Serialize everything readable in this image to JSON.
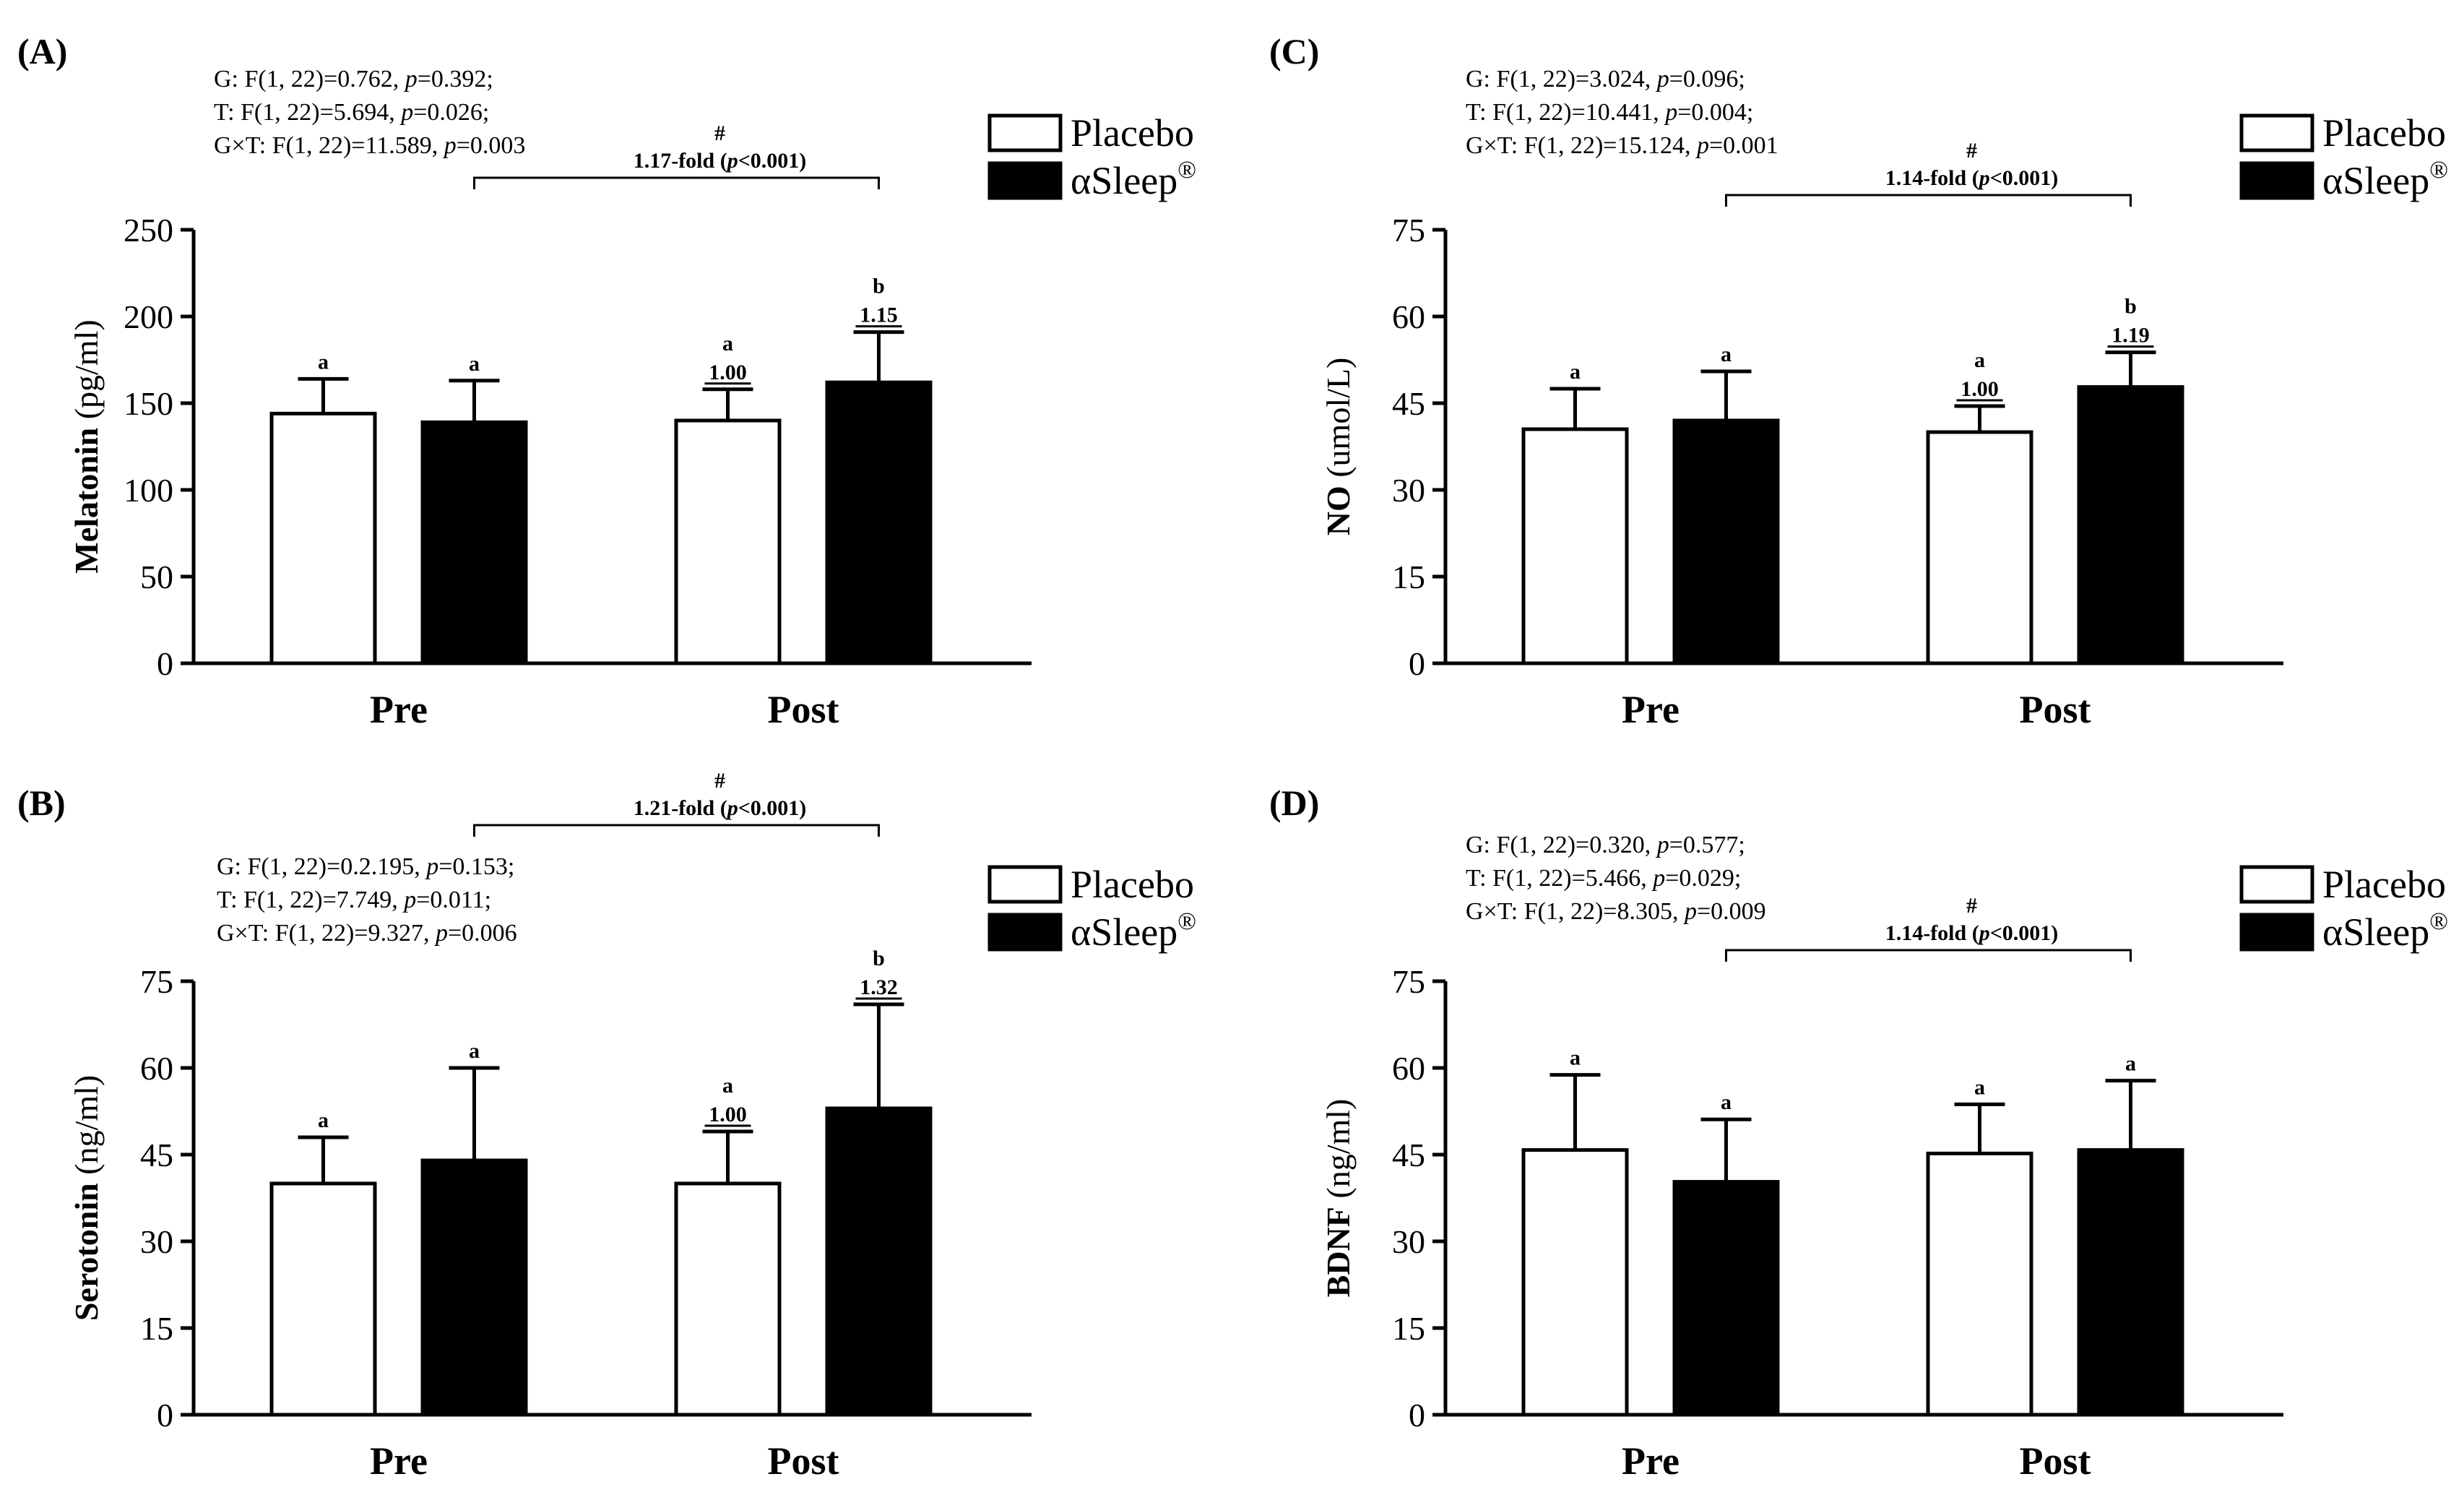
{
  "colors": {
    "placebo": "#ffffff",
    "asleep": "#000000",
    "stroke": "#000000"
  },
  "chart_data": [
    {
      "type": "bar",
      "panel_label": "(A)",
      "ylabel": "Melatonin (pg/ml)",
      "categories": [
        "Pre",
        "Post"
      ],
      "ylim": [
        0,
        250
      ],
      "yticks": [
        "0",
        "50",
        "100",
        "150",
        "200",
        "250"
      ],
      "legend": [
        "Placebo",
        "αSleep®"
      ],
      "legend_placement": "top-right",
      "stats": [
        {
          "prefix": "G: F(1, 22)=0.762,",
          "p": "=0.392;"
        },
        {
          "prefix": "T: F(1, 22)=5.694,",
          "p": "=0.026;"
        },
        {
          "prefix": "G×T: F(1, 22)=11.589,",
          "p": "=0.003"
        }
      ],
      "bracket": {
        "hash": "#",
        "fold": "1.17-fold (",
        "p": "<0.001)"
      },
      "series": [
        {
          "name": "Placebo",
          "values": [
            144,
            140
          ],
          "errors": [
            20,
            18
          ],
          "letters": [
            "a",
            "a"
          ],
          "folds": [
            "",
            "1.00"
          ]
        },
        {
          "name": "αSleep®",
          "values": [
            139,
            162
          ],
          "errors": [
            24,
            29
          ],
          "letters": [
            "a",
            "b"
          ],
          "folds": [
            "",
            "1.15"
          ]
        }
      ]
    },
    {
      "type": "bar",
      "panel_label": "(C)",
      "ylabel": "NO (umol/L)",
      "categories": [
        "Pre",
        "Post"
      ],
      "ylim": [
        0,
        75
      ],
      "yticks": [
        "0",
        "15",
        "30",
        "45",
        "60",
        "75"
      ],
      "legend": [
        "Placebo",
        "αSleep®"
      ],
      "legend_placement": "top-right",
      "stats": [
        {
          "prefix": "G: F(1, 22)=3.024,",
          "p": "=0.096;"
        },
        {
          "prefix": "T: F(1, 22)=10.441,",
          "p": "=0.004;"
        },
        {
          "prefix": "G×T: F(1, 22)=15.124,",
          "p": "=0.001"
        }
      ],
      "bracket": {
        "hash": "#",
        "fold": "1.14-fold (",
        "p": "<0.001)"
      },
      "series": [
        {
          "name": "Placebo",
          "values": [
            40.5,
            40.0
          ],
          "errors": [
            7.0,
            4.5
          ],
          "letters": [
            "a",
            "a"
          ],
          "folds": [
            "",
            "1.00"
          ]
        },
        {
          "name": "αSleep®",
          "values": [
            42.0,
            47.8
          ],
          "errors": [
            8.5,
            6.0
          ],
          "letters": [
            "a",
            "b"
          ],
          "folds": [
            "",
            "1.19"
          ]
        }
      ]
    },
    {
      "type": "bar",
      "panel_label": "(B)",
      "ylabel": "Serotonin (ng/ml)",
      "categories": [
        "Pre",
        "Post"
      ],
      "ylim": [
        0,
        75
      ],
      "yticks": [
        "0",
        "15",
        "30",
        "45",
        "60",
        "75"
      ],
      "legend": [
        "Placebo",
        "αSleep®"
      ],
      "legend_placement": "top-right",
      "stats": [
        {
          "prefix": "G: F(1, 22)=0.2.195,",
          "p": "=0.153;"
        },
        {
          "prefix": "T: F(1, 22)=7.749,",
          "p": "=0.011;"
        },
        {
          "prefix": "G×T: F(1, 22)=9.327,",
          "p": "=0.006"
        }
      ],
      "bracket": {
        "hash": "#",
        "fold": "1.21-fold (",
        "p": "<0.001)"
      },
      "series": [
        {
          "name": "Placebo",
          "values": [
            40.0,
            40.0
          ],
          "errors": [
            8.0,
            9.0
          ],
          "letters": [
            "a",
            "a"
          ],
          "folds": [
            "",
            "1.00"
          ]
        },
        {
          "name": "αSleep®",
          "values": [
            44.0,
            53.0
          ],
          "errors": [
            16.0,
            18.0
          ],
          "letters": [
            "a",
            "b"
          ],
          "folds": [
            "",
            "1.32"
          ]
        }
      ]
    },
    {
      "type": "bar",
      "panel_label": "(D)",
      "ylabel": "BDNF (ng/ml)",
      "categories": [
        "Pre",
        "Post"
      ],
      "ylim": [
        0,
        75
      ],
      "yticks": [
        "0",
        "15",
        "30",
        "45",
        "60",
        "75"
      ],
      "legend": [
        "Placebo",
        "αSleep®"
      ],
      "legend_placement": "top-right",
      "stats": [
        {
          "prefix": "G: F(1, 22)=0.320,",
          "p": "=0.577;"
        },
        {
          "prefix": "T: F(1, 22)=5.466,",
          "p": "=0.029;"
        },
        {
          "prefix": "G×T: F(1, 22)=8.305,",
          "p": "=0.009"
        }
      ],
      "bracket": {
        "hash": "#",
        "fold": "1.14-fold (",
        "p": "<0.001)"
      },
      "series": [
        {
          "name": "Placebo",
          "values": [
            45.8,
            45.2
          ],
          "errors": [
            13.0,
            8.5
          ],
          "letters": [
            "a",
            "a"
          ],
          "folds": [
            "",
            ""
          ]
        },
        {
          "name": "αSleep®",
          "values": [
            40.3,
            45.8
          ],
          "errors": [
            10.8,
            12.0
          ],
          "letters": [
            "a",
            "a"
          ],
          "folds": [
            "",
            ""
          ]
        }
      ]
    }
  ]
}
